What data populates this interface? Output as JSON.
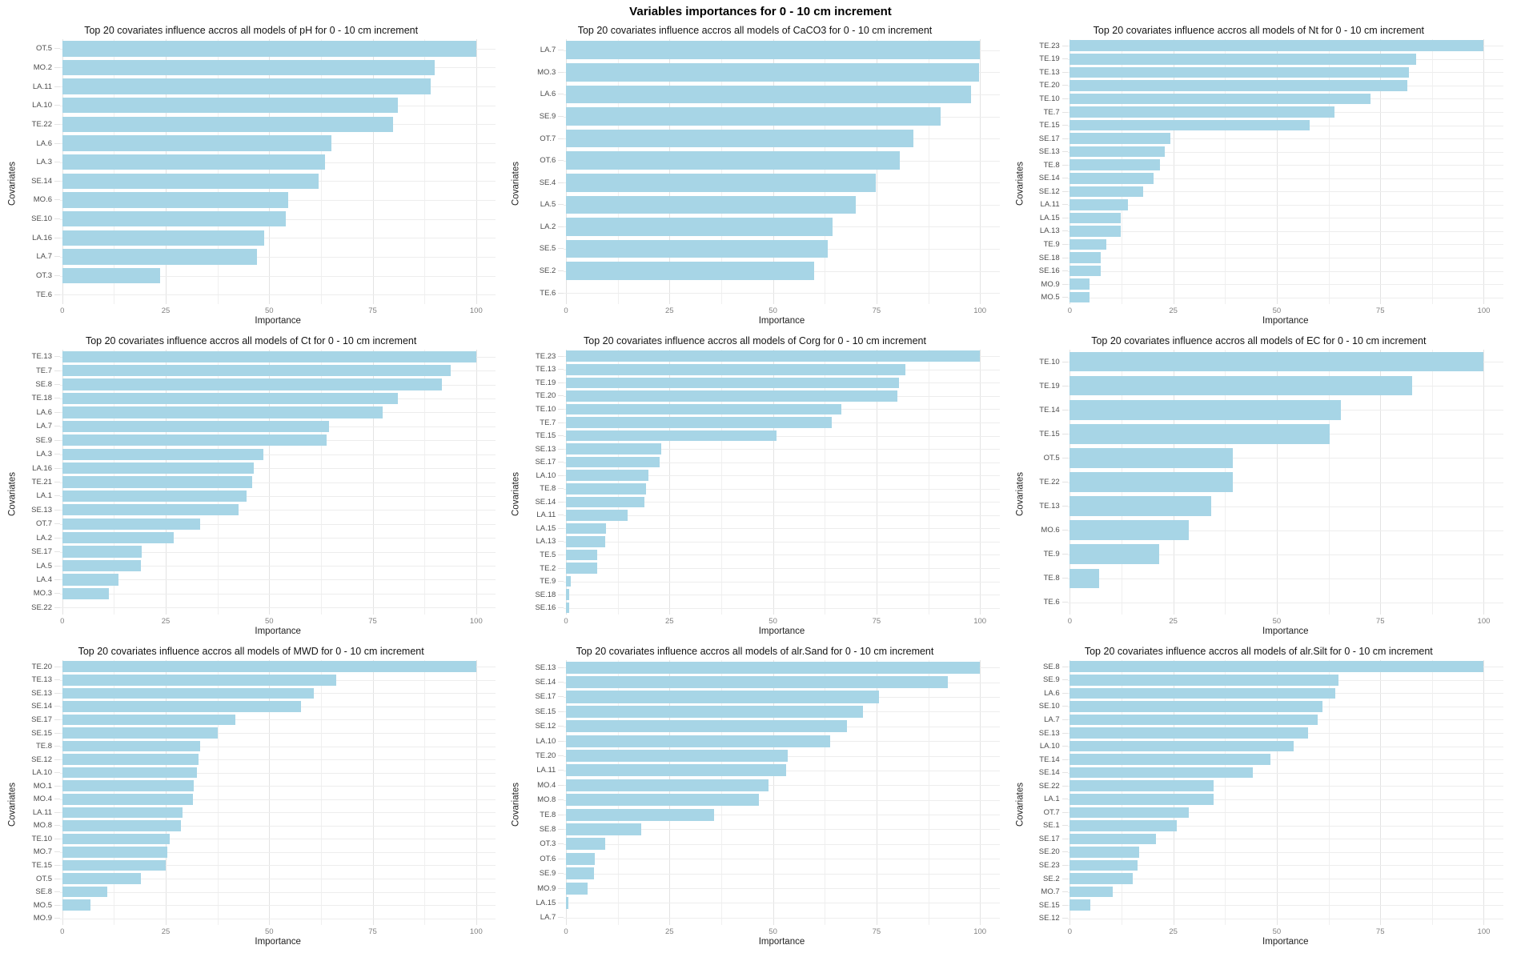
{
  "header": {
    "title": "Variables importances for 0 - 10 cm increment"
  },
  "chart_defaults": {
    "type": "bar",
    "orientation": "horizontal",
    "xlabel": "Importance",
    "ylabel": "Covariates",
    "xlim": [
      0,
      100
    ],
    "xticks": [
      0,
      25,
      50,
      75,
      100
    ],
    "minor_gridlines": [
      12.5,
      37.5,
      62.5,
      87.5
    ],
    "grid": "on",
    "legend": "none",
    "bar_color": "#a7d5e6",
    "grid_major_color": "#e3e3e3",
    "grid_minor_color": "#f0f0f0"
  },
  "chart_data": [
    {
      "type": "bar",
      "target": "pH",
      "title": "Top 20 covariates influence accros all models of pH for 0 - 10 cm increment",
      "categories": [
        "OT.5",
        "MO.2",
        "LA.11",
        "LA.10",
        "TE.22",
        "LA.6",
        "LA.3",
        "SE.14",
        "MO.6",
        "SE.10",
        "LA.16",
        "LA.7",
        "OT.3",
        "TE.6"
      ],
      "values": [
        100,
        90,
        89,
        81,
        80,
        65,
        63.5,
        62,
        54.5,
        54,
        48.7,
        47,
        23.6,
        0
      ]
    },
    {
      "type": "bar",
      "target": "CaCO3",
      "title": "Top 20 covariates influence accros all models of CaCO3 for 0 - 10 cm increment",
      "categories": [
        "LA.7",
        "MO.3",
        "LA.6",
        "SE.9",
        "OT.7",
        "OT.6",
        "SE.4",
        "LA.5",
        "LA.2",
        "SE.5",
        "SE.2",
        "TE.6"
      ],
      "values": [
        100,
        99.8,
        97.8,
        90.5,
        84,
        80.6,
        74.9,
        70,
        64.3,
        63.3,
        59.9,
        0
      ]
    },
    {
      "type": "bar",
      "target": "Nt",
      "title": "Top 20 covariates influence accros all models of Nt for 0 - 10 cm increment",
      "categories": [
        "TE.23",
        "TE.19",
        "TE.13",
        "TE.20",
        "TE.10",
        "TE.7",
        "TE.15",
        "SE.17",
        "SE.13",
        "TE.8",
        "SE.14",
        "SE.12",
        "LA.11",
        "LA.15",
        "LA.13",
        "TE.9",
        "SE.18",
        "SE.16",
        "MO.9",
        "MO.5"
      ],
      "values": [
        100,
        83.7,
        82,
        81.6,
        72.7,
        64,
        57.9,
        24.3,
        23,
        21.8,
        20.3,
        17.8,
        14.1,
        12.4,
        12.4,
        8.9,
        7.4,
        7.4,
        4.8,
        4.8
      ]
    },
    {
      "type": "bar",
      "target": "Ct",
      "title": "Top 20 covariates influence accros all models of Ct for 0 - 10 cm increment",
      "categories": [
        "TE.13",
        "TE.7",
        "SE.8",
        "TE.18",
        "LA.6",
        "LA.7",
        "SE.9",
        "LA.3",
        "LA.16",
        "TE.21",
        "LA.1",
        "SE.13",
        "OT.7",
        "LA.2",
        "SE.17",
        "LA.5",
        "LA.4",
        "MO.3",
        "SE.22"
      ],
      "values": [
        100,
        93.8,
        91.7,
        81,
        77.5,
        64.4,
        63.9,
        48.6,
        46.3,
        45.8,
        44.5,
        42.6,
        33.3,
        27,
        19.2,
        19,
        13.5,
        11.2,
        0
      ]
    },
    {
      "type": "bar",
      "target": "Corg",
      "title": "Top 20 covariates influence accros all models of Corg for 0 - 10 cm increment",
      "categories": [
        "TE.23",
        "TE.13",
        "TE.19",
        "TE.20",
        "TE.10",
        "TE.7",
        "TE.15",
        "SE.13",
        "SE.17",
        "LA.10",
        "TE.8",
        "SE.14",
        "LA.11",
        "LA.15",
        "LA.13",
        "TE.5",
        "TE.2",
        "TE.9",
        "SE.18",
        "SE.16"
      ],
      "values": [
        100,
        82,
        80.5,
        80,
        66.5,
        64.2,
        50.8,
        23,
        22.7,
        20,
        19.4,
        19,
        14.8,
        9.6,
        9.5,
        7.6,
        7.6,
        1.1,
        0.8,
        0.8
      ]
    },
    {
      "type": "bar",
      "target": "EC",
      "title": "Top 20 covariates influence accros all models of EC for 0 - 10 cm increment",
      "categories": [
        "TE.10",
        "TE.19",
        "TE.14",
        "TE.15",
        "OT.5",
        "TE.22",
        "TE.13",
        "MO.6",
        "TE.9",
        "TE.8",
        "TE.6"
      ],
      "values": [
        100,
        82.6,
        65.4,
        62.7,
        39.3,
        39.3,
        34.1,
        28.7,
        21.5,
        7,
        0
      ]
    },
    {
      "type": "bar",
      "target": "MWD",
      "title": "Top 20 covariates influence accros all models of MWD for 0 - 10 cm increment",
      "categories": [
        "TE.20",
        "TE.13",
        "SE.13",
        "SE.14",
        "SE.17",
        "SE.15",
        "TE.8",
        "SE.12",
        "LA.10",
        "MO.1",
        "MO.4",
        "LA.11",
        "MO.8",
        "TE.10",
        "MO.7",
        "TE.15",
        "OT.5",
        "SE.8",
        "MO.5",
        "MO.9"
      ],
      "values": [
        100,
        66.2,
        60.8,
        57.7,
        41.9,
        37.6,
        33.4,
        33,
        32.6,
        31.7,
        31.6,
        29,
        28.6,
        26,
        25.4,
        25,
        19,
        10.8,
        6.8,
        0
      ]
    },
    {
      "type": "bar",
      "target": "alr.Sand",
      "title": "Top 20 covariates influence accros all models of alr.Sand for 0 - 10 cm increment",
      "categories": [
        "SE.13",
        "SE.14",
        "SE.17",
        "SE.15",
        "SE.12",
        "LA.10",
        "TE.20",
        "LA.11",
        "MO.4",
        "MO.8",
        "TE.8",
        "SE.8",
        "OT.3",
        "OT.6",
        "SE.9",
        "MO.9",
        "LA.15",
        "LA.7"
      ],
      "values": [
        100,
        92.3,
        75.6,
        71.7,
        67.8,
        63.9,
        53.6,
        53.2,
        48.9,
        46.6,
        35.7,
        18.2,
        9.4,
        7,
        6.8,
        5.3,
        0.5,
        0
      ]
    },
    {
      "type": "bar",
      "target": "alr.Silt",
      "title": "Top 20 covariates influence accros all models of alr.Silt for 0 - 10 cm increment",
      "categories": [
        "SE.8",
        "SE.9",
        "LA.6",
        "SE.10",
        "LA.7",
        "SE.13",
        "LA.10",
        "TE.14",
        "SE.14",
        "SE.22",
        "LA.1",
        "OT.7",
        "SE.1",
        "SE.17",
        "SE.20",
        "SE.23",
        "SE.2",
        "MO.7",
        "SE.15",
        "SE.12"
      ],
      "values": [
        100,
        65,
        64.2,
        61.1,
        59.9,
        57.6,
        54.1,
        48.4,
        44.3,
        34.7,
        34.7,
        28.8,
        25.8,
        20.8,
        16.7,
        16.4,
        15.3,
        10.3,
        5,
        0
      ]
    }
  ]
}
